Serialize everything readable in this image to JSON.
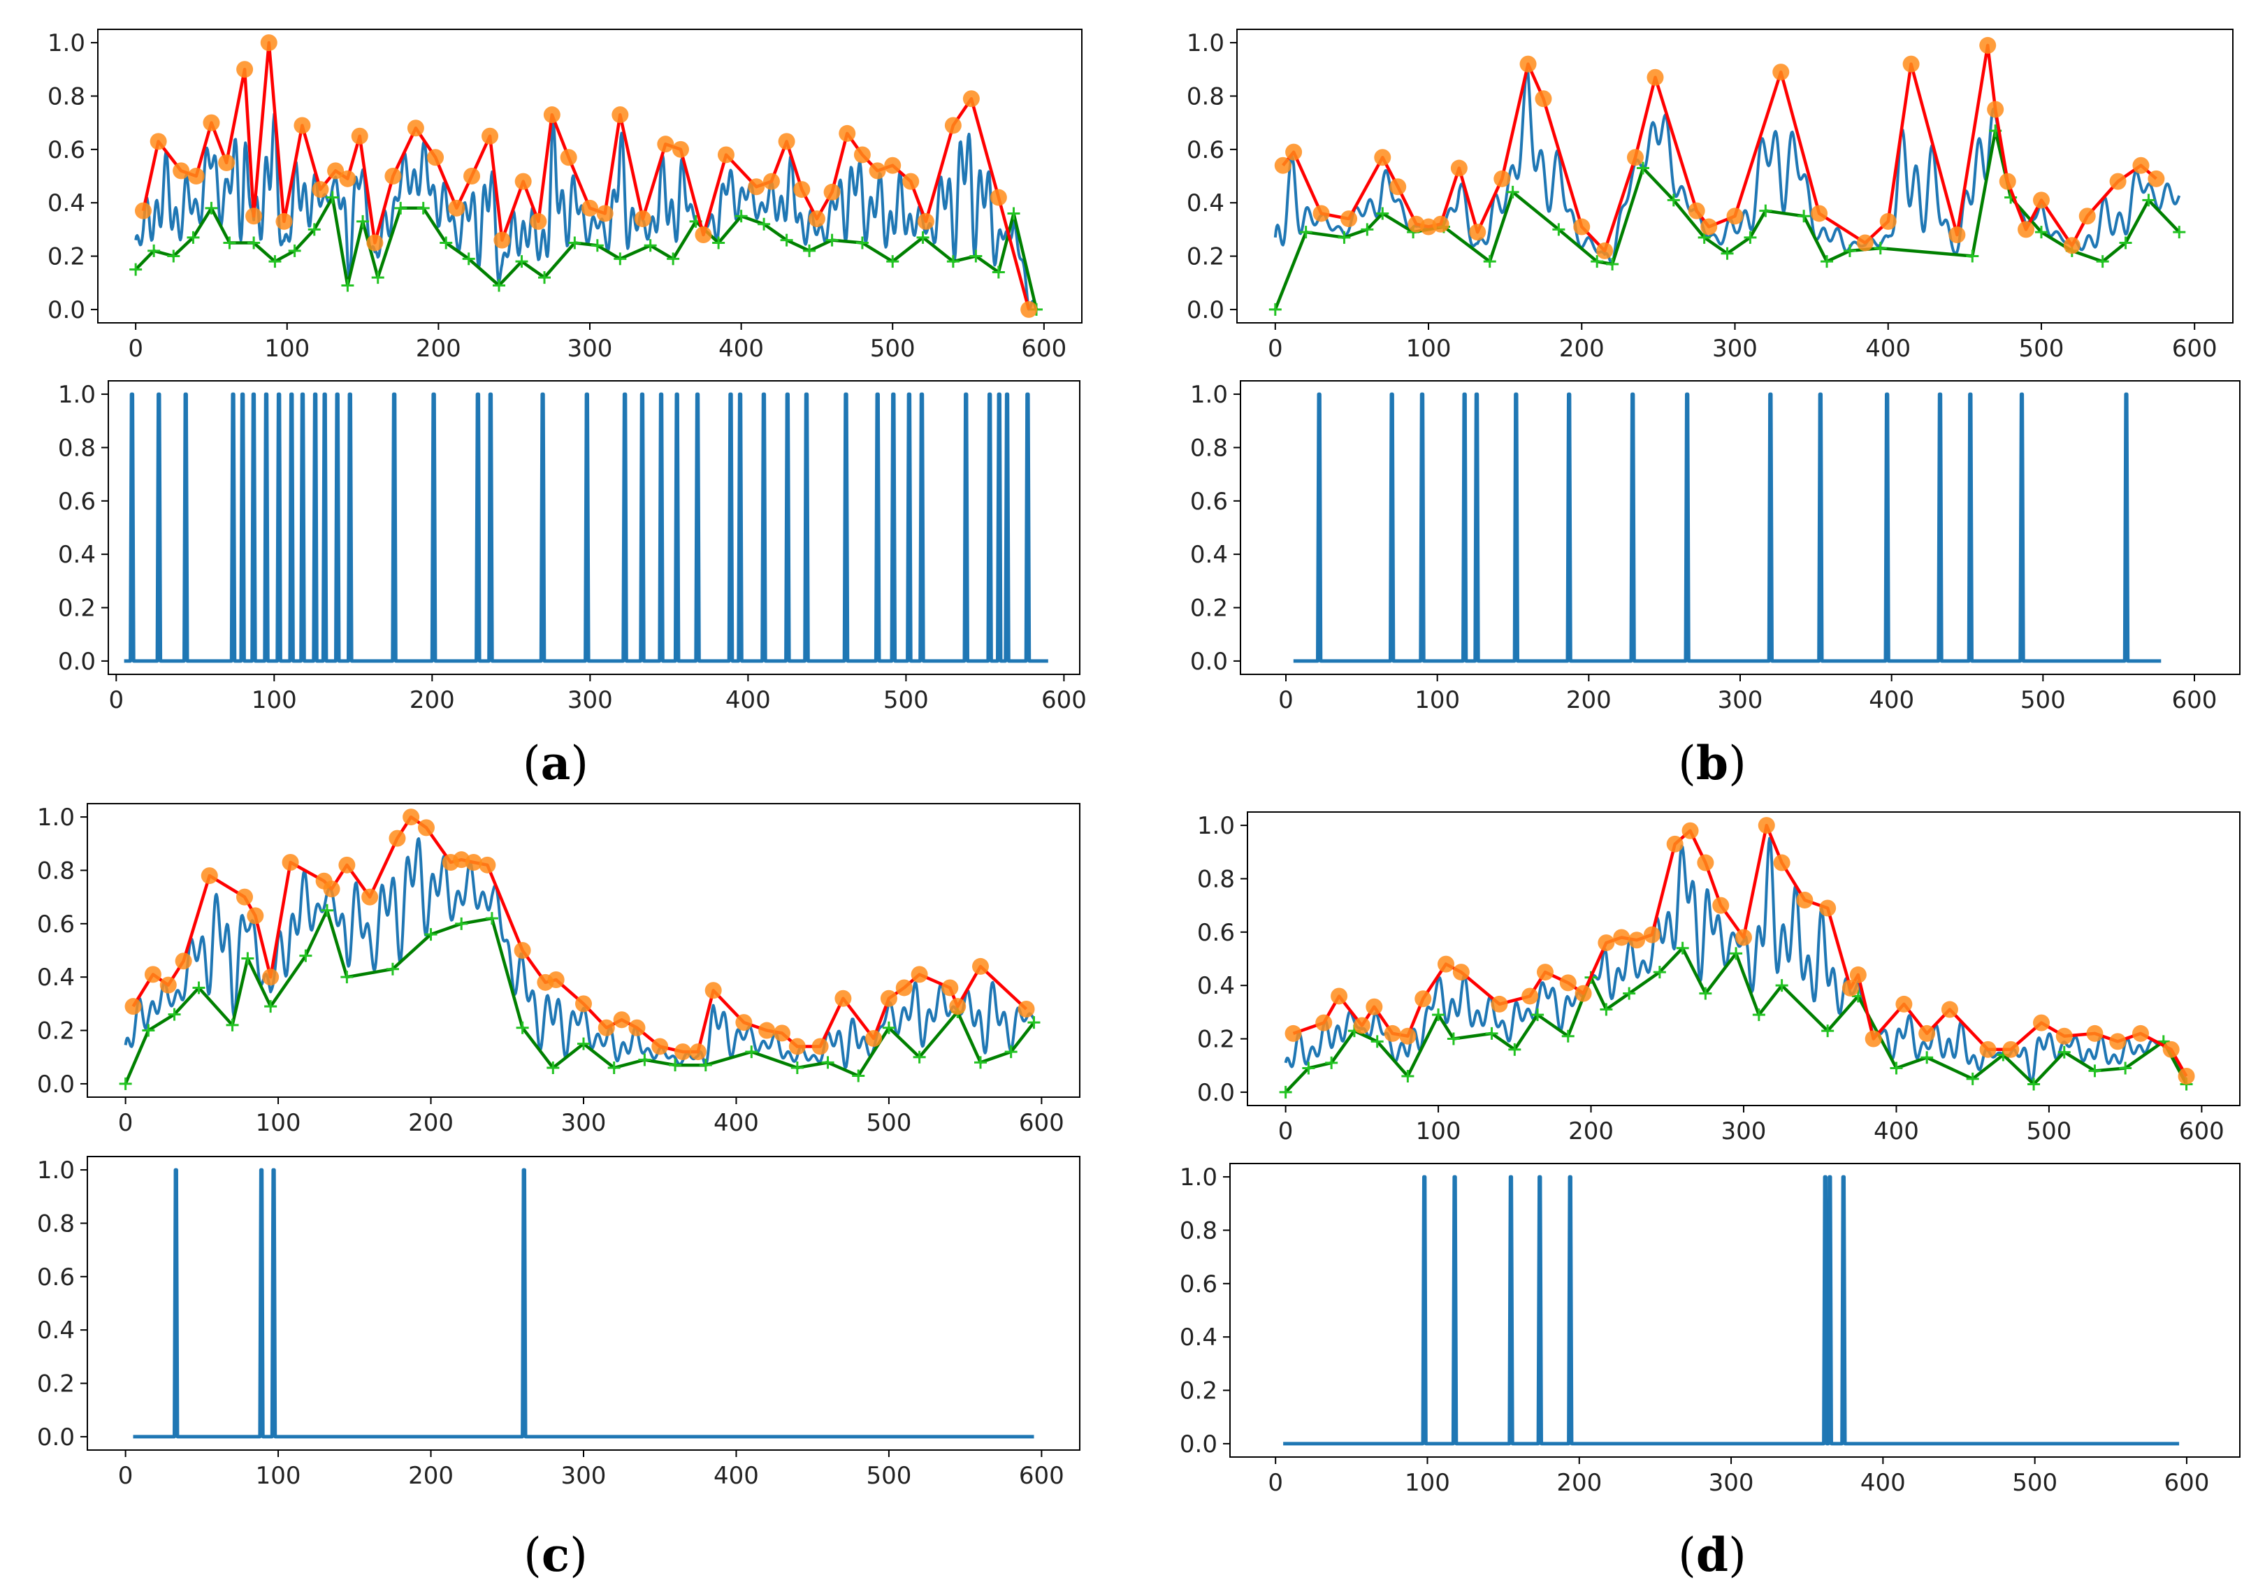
{
  "colors": {
    "signal": "#1f77b4",
    "upper_envelope": "#ff0000",
    "upper_markers": "#ff8c1a",
    "lower_envelope": "#008000",
    "axes": "#000000"
  },
  "panel_labels": [
    {
      "open": "(",
      "letter": "a",
      "close": ")"
    },
    {
      "open": "(",
      "letter": "b",
      "close": ")"
    },
    {
      "open": "(",
      "letter": "c",
      "close": ")"
    },
    {
      "open": "(",
      "letter": "d",
      "close": ")"
    }
  ],
  "chart_data": [
    {
      "panel": "a",
      "position": "top",
      "type": "line",
      "xlim": [
        -25,
        625
      ],
      "ylim": [
        -0.05,
        1.05
      ],
      "xticks": [
        0,
        100,
        200,
        300,
        400,
        500,
        600
      ],
      "yticks": [
        0.0,
        0.2,
        0.4,
        0.6,
        0.8,
        1.0
      ],
      "xtick_labels": [
        "0",
        "100",
        "200",
        "300",
        "400",
        "500",
        "600"
      ],
      "ytick_labels": [
        "0.0",
        "0.2",
        "0.4",
        "0.6",
        "0.8",
        "1.0"
      ],
      "upper_envelope": {
        "x": [
          5,
          15,
          30,
          40,
          50,
          60,
          72,
          78,
          88,
          98,
          110,
          122,
          132,
          140,
          148,
          158,
          170,
          185,
          198,
          212,
          222,
          234,
          242,
          256,
          266,
          275,
          286,
          300,
          310,
          320,
          335,
          350,
          360,
          375,
          390,
          410,
          420,
          430,
          440,
          450,
          460,
          470,
          480,
          490,
          500,
          512,
          522,
          540,
          552,
          570,
          590
        ],
        "y": [
          0.37,
          0.63,
          0.52,
          0.5,
          0.7,
          0.55,
          0.9,
          0.35,
          1.0,
          0.33,
          0.69,
          0.45,
          0.52,
          0.49,
          0.65,
          0.25,
          0.5,
          0.68,
          0.57,
          0.38,
          0.5,
          0.65,
          0.26,
          0.48,
          0.33,
          0.73,
          0.57,
          0.38,
          0.36,
          0.73,
          0.34,
          0.62,
          0.6,
          0.28,
          0.58,
          0.46,
          0.48,
          0.63,
          0.45,
          0.34,
          0.44,
          0.66,
          0.58,
          0.52,
          0.54,
          0.48,
          0.33,
          0.69,
          0.79,
          0.42,
          0.0
        ]
      },
      "lower_envelope": {
        "x": [
          0,
          12,
          25,
          38,
          50,
          62,
          78,
          92,
          105,
          118,
          130,
          140,
          150,
          160,
          175,
          190,
          205,
          220,
          240,
          255,
          270,
          290,
          305,
          320,
          340,
          355,
          370,
          385,
          400,
          415,
          430,
          445,
          460,
          480,
          500,
          520,
          540,
          555,
          570,
          580,
          595
        ],
        "y": [
          0.15,
          0.22,
          0.2,
          0.27,
          0.38,
          0.25,
          0.25,
          0.18,
          0.22,
          0.3,
          0.42,
          0.09,
          0.33,
          0.12,
          0.38,
          0.38,
          0.25,
          0.19,
          0.09,
          0.18,
          0.12,
          0.25,
          0.24,
          0.19,
          0.24,
          0.19,
          0.33,
          0.25,
          0.35,
          0.32,
          0.26,
          0.22,
          0.26,
          0.25,
          0.18,
          0.27,
          0.18,
          0.2,
          0.14,
          0.36,
          0.0
        ]
      },
      "signal_osc_freq": 0.7
    },
    {
      "panel": "a",
      "position": "bottom",
      "type": "line",
      "xlim": [
        -5,
        610
      ],
      "ylim": [
        -0.05,
        1.05
      ],
      "xticks": [
        0,
        100,
        200,
        300,
        400,
        500,
        600
      ],
      "yticks": [
        0.0,
        0.2,
        0.4,
        0.6,
        0.8,
        1.0
      ],
      "xtick_labels": [
        "0",
        "100",
        "200",
        "300",
        "400",
        "500",
        "600"
      ],
      "ytick_labels": [
        "0.0",
        "0.2",
        "0.4",
        "0.6",
        "0.8",
        "1.0"
      ],
      "baseline_range": [
        5,
        590
      ],
      "spikes": [
        10,
        27,
        44,
        74,
        80,
        87,
        95,
        103,
        111,
        118,
        126,
        132,
        140,
        148,
        176,
        201,
        229,
        237,
        270,
        298,
        322,
        333,
        345,
        355,
        368,
        389,
        395,
        410,
        425,
        437,
        462,
        482,
        492,
        502,
        510,
        538,
        553,
        559,
        564,
        577
      ]
    },
    {
      "panel": "b",
      "position": "top",
      "type": "line",
      "xlim": [
        -25,
        625
      ],
      "ylim": [
        -0.05,
        1.05
      ],
      "xticks": [
        0,
        100,
        200,
        300,
        400,
        500,
        600
      ],
      "yticks": [
        0.0,
        0.2,
        0.4,
        0.6,
        0.8,
        1.0
      ],
      "xtick_labels": [
        "0",
        "100",
        "200",
        "300",
        "400",
        "500",
        "600"
      ],
      "ytick_labels": [
        "0.0",
        "0.2",
        "0.4",
        "0.6",
        "0.8",
        "1.0"
      ],
      "upper_envelope": {
        "x": [
          5,
          12,
          30,
          48,
          70,
          80,
          92,
          100,
          108,
          120,
          132,
          148,
          165,
          175,
          200,
          215,
          235,
          248,
          275,
          283,
          300,
          330,
          355,
          385,
          400,
          415,
          445,
          465,
          470,
          478,
          490,
          500,
          520,
          530,
          550,
          565,
          575
        ],
        "y": [
          0.54,
          0.59,
          0.36,
          0.34,
          0.57,
          0.46,
          0.32,
          0.31,
          0.32,
          0.53,
          0.29,
          0.49,
          0.92,
          0.79,
          0.31,
          0.22,
          0.57,
          0.87,
          0.37,
          0.31,
          0.35,
          0.89,
          0.36,
          0.25,
          0.33,
          0.92,
          0.28,
          0.99,
          0.75,
          0.48,
          0.3,
          0.41,
          0.24,
          0.35,
          0.48,
          0.54,
          0.49
        ]
      },
      "lower_envelope": {
        "x": [
          0,
          20,
          45,
          60,
          70,
          90,
          110,
          140,
          155,
          185,
          210,
          220,
          240,
          260,
          280,
          295,
          310,
          320,
          345,
          360,
          375,
          395,
          455,
          470,
          480,
          500,
          520,
          540,
          555,
          570,
          590
        ],
        "y": [
          0.0,
          0.29,
          0.27,
          0.3,
          0.36,
          0.29,
          0.31,
          0.18,
          0.44,
          0.3,
          0.18,
          0.17,
          0.53,
          0.41,
          0.27,
          0.21,
          0.27,
          0.37,
          0.35,
          0.18,
          0.22,
          0.23,
          0.2,
          0.67,
          0.42,
          0.29,
          0.22,
          0.18,
          0.25,
          0.41,
          0.29
        ]
      },
      "signal_osc_freq": 0.45
    },
    {
      "panel": "b",
      "position": "bottom",
      "type": "line",
      "xlim": [
        -30,
        630
      ],
      "ylim": [
        -0.05,
        1.05
      ],
      "xticks": [
        0,
        100,
        200,
        300,
        400,
        500,
        600
      ],
      "yticks": [
        0.0,
        0.2,
        0.4,
        0.6,
        0.8,
        1.0
      ],
      "xtick_labels": [
        "0",
        "100",
        "200",
        "300",
        "400",
        "500",
        "600"
      ],
      "ytick_labels": [
        "0.0",
        "0.2",
        "0.4",
        "0.6",
        "0.8",
        "1.0"
      ],
      "baseline_range": [
        5,
        578
      ],
      "spikes": [
        22,
        70,
        90,
        118,
        126,
        152,
        187,
        229,
        265,
        320,
        353,
        397,
        432,
        452,
        486,
        555
      ]
    },
    {
      "panel": "c",
      "position": "top",
      "type": "line",
      "xlim": [
        -25,
        625
      ],
      "ylim": [
        -0.05,
        1.05
      ],
      "xticks": [
        0,
        100,
        200,
        300,
        400,
        500,
        600
      ],
      "yticks": [
        0.0,
        0.2,
        0.4,
        0.6,
        0.8,
        1.0
      ],
      "xtick_labels": [
        "0",
        "100",
        "200",
        "300",
        "400",
        "500",
        "600"
      ],
      "ytick_labels": [
        "0.0",
        "0.2",
        "0.4",
        "0.6",
        "0.8",
        "1.0"
      ],
      "upper_envelope": {
        "x": [
          5,
          18,
          28,
          38,
          55,
          78,
          85,
          95,
          108,
          130,
          135,
          145,
          160,
          178,
          187,
          197,
          213,
          220,
          228,
          237,
          260,
          275,
          282,
          300,
          315,
          325,
          335,
          350,
          365,
          375,
          385,
          405,
          420,
          430,
          440,
          455,
          470,
          490,
          500,
          510,
          520,
          540,
          545,
          560,
          590
        ],
        "y": [
          0.29,
          0.41,
          0.37,
          0.46,
          0.78,
          0.7,
          0.63,
          0.4,
          0.83,
          0.76,
          0.73,
          0.82,
          0.7,
          0.92,
          1.0,
          0.96,
          0.83,
          0.84,
          0.83,
          0.82,
          0.5,
          0.38,
          0.39,
          0.3,
          0.21,
          0.24,
          0.21,
          0.14,
          0.12,
          0.12,
          0.35,
          0.23,
          0.2,
          0.19,
          0.14,
          0.14,
          0.32,
          0.17,
          0.32,
          0.36,
          0.41,
          0.36,
          0.29,
          0.44,
          0.28
        ]
      },
      "lower_envelope": {
        "x": [
          0,
          15,
          32,
          48,
          70,
          80,
          95,
          118,
          132,
          145,
          175,
          200,
          220,
          240,
          260,
          280,
          300,
          320,
          340,
          360,
          380,
          410,
          440,
          460,
          480,
          500,
          520,
          545,
          560,
          580,
          595
        ],
        "y": [
          0.0,
          0.2,
          0.26,
          0.36,
          0.22,
          0.47,
          0.29,
          0.48,
          0.65,
          0.4,
          0.43,
          0.56,
          0.6,
          0.62,
          0.21,
          0.06,
          0.15,
          0.06,
          0.09,
          0.07,
          0.07,
          0.12,
          0.06,
          0.08,
          0.03,
          0.21,
          0.1,
          0.27,
          0.08,
          0.12,
          0.23
        ]
      },
      "signal_osc_freq": 0.55
    },
    {
      "panel": "c",
      "position": "bottom",
      "type": "line",
      "xlim": [
        -25,
        625
      ],
      "ylim": [
        -0.05,
        1.05
      ],
      "xticks": [
        0,
        100,
        200,
        300,
        400,
        500,
        600
      ],
      "yticks": [
        0.0,
        0.2,
        0.4,
        0.6,
        0.8,
        1.0
      ],
      "xtick_labels": [
        "0",
        "100",
        "200",
        "300",
        "400",
        "500",
        "600"
      ],
      "ytick_labels": [
        "0.0",
        "0.2",
        "0.4",
        "0.6",
        "0.8",
        "1.0"
      ],
      "baseline_range": [
        5,
        595
      ],
      "spikes": [
        33,
        89,
        97,
        261
      ]
    },
    {
      "panel": "d",
      "position": "top",
      "type": "line",
      "xlim": [
        -25,
        625
      ],
      "ylim": [
        -0.05,
        1.05
      ],
      "xticks": [
        0,
        100,
        200,
        300,
        400,
        500,
        600
      ],
      "yticks": [
        0.0,
        0.2,
        0.4,
        0.6,
        0.8,
        1.0
      ],
      "xtick_labels": [
        "0",
        "100",
        "200",
        "300",
        "400",
        "500",
        "600"
      ],
      "ytick_labels": [
        "0.0",
        "0.2",
        "0.4",
        "0.6",
        "0.8",
        "1.0"
      ],
      "upper_envelope": {
        "x": [
          5,
          25,
          35,
          50,
          58,
          70,
          80,
          90,
          105,
          115,
          140,
          160,
          170,
          185,
          195,
          210,
          220,
          230,
          240,
          255,
          265,
          275,
          285,
          300,
          315,
          325,
          340,
          355,
          370,
          375,
          385,
          405,
          420,
          435,
          460,
          475,
          495,
          510,
          530,
          545,
          560,
          580,
          590
        ],
        "y": [
          0.22,
          0.26,
          0.36,
          0.25,
          0.32,
          0.22,
          0.21,
          0.35,
          0.48,
          0.45,
          0.33,
          0.36,
          0.45,
          0.41,
          0.37,
          0.56,
          0.58,
          0.57,
          0.59,
          0.93,
          0.98,
          0.86,
          0.7,
          0.58,
          1.0,
          0.86,
          0.72,
          0.69,
          0.39,
          0.44,
          0.2,
          0.33,
          0.22,
          0.31,
          0.16,
          0.16,
          0.26,
          0.21,
          0.22,
          0.19,
          0.22,
          0.16,
          0.06
        ]
      },
      "lower_envelope": {
        "x": [
          0,
          15,
          30,
          45,
          60,
          80,
          100,
          110,
          135,
          150,
          165,
          185,
          200,
          210,
          225,
          245,
          260,
          275,
          295,
          310,
          325,
          355,
          375,
          400,
          420,
          450,
          470,
          490,
          510,
          530,
          550,
          575,
          590
        ],
        "y": [
          0.0,
          0.09,
          0.11,
          0.23,
          0.19,
          0.06,
          0.29,
          0.2,
          0.22,
          0.16,
          0.29,
          0.21,
          0.43,
          0.31,
          0.37,
          0.45,
          0.54,
          0.37,
          0.52,
          0.29,
          0.4,
          0.23,
          0.36,
          0.09,
          0.13,
          0.05,
          0.14,
          0.03,
          0.15,
          0.08,
          0.09,
          0.19,
          0.03
        ]
      },
      "signal_osc_freq": 0.55
    },
    {
      "panel": "d",
      "position": "bottom",
      "type": "line",
      "xlim": [
        -30,
        635
      ],
      "ylim": [
        -0.05,
        1.05
      ],
      "xticks": [
        0,
        100,
        200,
        300,
        400,
        500,
        600
      ],
      "yticks": [
        0.0,
        0.2,
        0.4,
        0.6,
        0.8,
        1.0
      ],
      "xtick_labels": [
        "0",
        "100",
        "200",
        "300",
        "400",
        "500",
        "600"
      ],
      "ytick_labels": [
        "0.0",
        "0.2",
        "0.4",
        "0.6",
        "0.8",
        "1.0"
      ],
      "baseline_range": [
        5,
        595
      ],
      "spikes": [
        98,
        118,
        155,
        174,
        194,
        362,
        365,
        374
      ]
    }
  ]
}
